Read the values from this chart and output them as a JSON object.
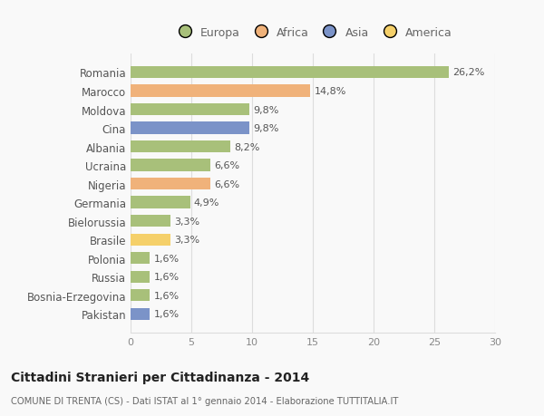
{
  "countries": [
    "Romania",
    "Marocco",
    "Moldova",
    "Cina",
    "Albania",
    "Ucraina",
    "Nigeria",
    "Germania",
    "Bielorussia",
    "Brasile",
    "Polonia",
    "Russia",
    "Bosnia-Erzegovina",
    "Pakistan"
  ],
  "values": [
    26.2,
    14.8,
    9.8,
    9.8,
    8.2,
    6.6,
    6.6,
    4.9,
    3.3,
    3.3,
    1.6,
    1.6,
    1.6,
    1.6
  ],
  "labels": [
    "26,2%",
    "14,8%",
    "9,8%",
    "9,8%",
    "8,2%",
    "6,6%",
    "6,6%",
    "4,9%",
    "3,3%",
    "3,3%",
    "1,6%",
    "1,6%",
    "1,6%",
    "1,6%"
  ],
  "colors": [
    "#a8c07a",
    "#f0b27a",
    "#a8c07a",
    "#7b93c8",
    "#a8c07a",
    "#a8c07a",
    "#f0b27a",
    "#a8c07a",
    "#a8c07a",
    "#f5d06a",
    "#a8c07a",
    "#a8c07a",
    "#a8c07a",
    "#7b93c8"
  ],
  "legend_labels": [
    "Europa",
    "Africa",
    "Asia",
    "America"
  ],
  "legend_colors": [
    "#a8c07a",
    "#f0b27a",
    "#7b93c8",
    "#f5d06a"
  ],
  "title": "Cittadini Stranieri per Cittadinanza - 2014",
  "subtitle": "COMUNE DI TRENTA (CS) - Dati ISTAT al 1° gennaio 2014 - Elaborazione TUTTITALIA.IT",
  "xlim": [
    0,
    30
  ],
  "xticks": [
    0,
    5,
    10,
    15,
    20,
    25,
    30
  ],
  "background_color": "#f9f9f9",
  "grid_color": "#dddddd",
  "bar_height": 0.65
}
